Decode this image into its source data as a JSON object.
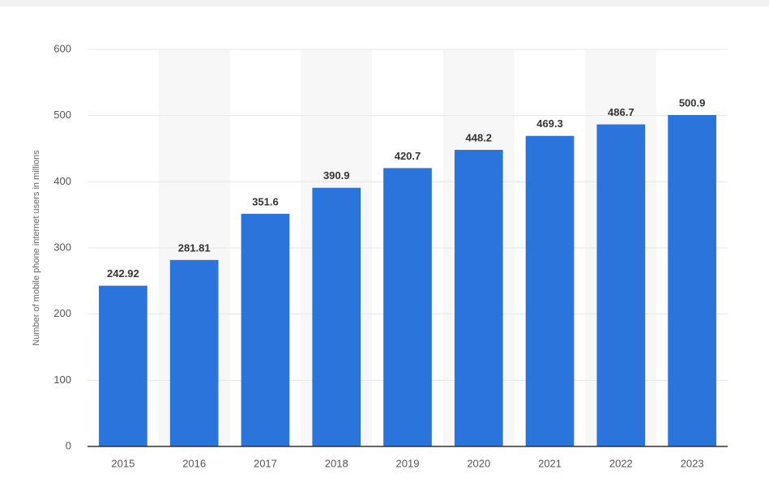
{
  "chart_data": {
    "type": "bar",
    "y_axis_label": "Number of mobile phone internet users in millions",
    "categories": [
      "2015",
      "2016",
      "2017",
      "2018",
      "2019",
      "2020",
      "2021",
      "2022",
      "2023"
    ],
    "values": [
      242.92,
      281.81,
      351.6,
      390.9,
      420.7,
      448.2,
      469.3,
      486.7,
      500.9
    ],
    "color": "#2a74db",
    "ylim": [
      0,
      600
    ],
    "yticks": [
      0,
      100,
      200,
      300,
      400,
      500,
      600
    ],
    "grid": true
  }
}
